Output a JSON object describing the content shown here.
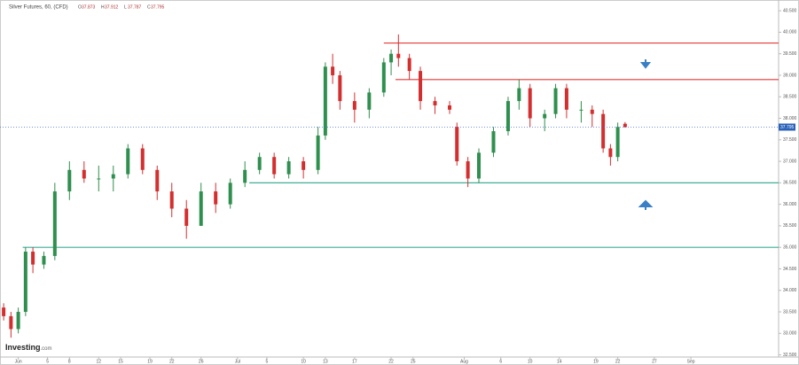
{
  "chart_data": {
    "type": "candlestick",
    "title": "Silver Futures, 60, (CFD)",
    "ohlc_legend": [
      {
        "label": "O",
        "value": "37.873"
      },
      {
        "label": "H",
        "value": "37.912"
      },
      {
        "label": "L",
        "value": "37.787"
      },
      {
        "label": "C",
        "value": "37.795"
      }
    ],
    "brand": "Investing",
    "brand_suffix": ".com",
    "last_price": 37.795,
    "up_color": "#2f8f4e",
    "down_color": "#d32f2f",
    "x": [
      -2,
      -1,
      0,
      1,
      2,
      3.5,
      5,
      7,
      9,
      11,
      13,
      15,
      17,
      19,
      21,
      23,
      25,
      27,
      29,
      31,
      33,
      35,
      37,
      39,
      41,
      42,
      43,
      44,
      46,
      48,
      50,
      51,
      52,
      53.5,
      55,
      57,
      59,
      60,
      61.5,
      63,
      65,
      67,
      68.5,
      70,
      72,
      73.5,
      75,
      77,
      78.5,
      80,
      81,
      82,
      83
    ],
    "open": [
      33.6,
      33.4,
      33.1,
      33.5,
      34.9,
      34.6,
      34.8,
      36.3,
      36.8,
      36.6,
      36.6,
      36.7,
      37.3,
      36.8,
      36.3,
      35.9,
      35.5,
      36.3,
      36.0,
      36.5,
      36.8,
      37.1,
      36.7,
      37.0,
      36.8,
      37.6,
      39.2,
      39.0,
      38.4,
      38.2,
      38.6,
      39.3,
      39.5,
      39.4,
      39.1,
      38.4,
      38.3,
      37.8,
      37.0,
      36.6,
      37.2,
      37.7,
      38.4,
      38.7,
      38.0,
      38.1,
      38.7,
      38.2,
      38.2,
      38.1,
      37.3,
      37.1,
      37.873
    ],
    "high": [
      33.7,
      33.5,
      33.6,
      35.0,
      35.0,
      34.9,
      36.5,
      37.0,
      37.0,
      36.9,
      36.9,
      37.4,
      37.4,
      36.9,
      36.5,
      36.1,
      36.5,
      36.5,
      36.6,
      37.0,
      37.2,
      37.2,
      37.1,
      37.1,
      37.8,
      39.3,
      39.5,
      39.1,
      38.6,
      38.7,
      39.4,
      39.6,
      39.95,
      39.5,
      39.2,
      38.5,
      38.4,
      37.9,
      37.1,
      37.3,
      37.8,
      38.5,
      38.9,
      38.8,
      38.2,
      38.8,
      38.8,
      38.4,
      38.3,
      38.2,
      37.4,
      37.9,
      37.912
    ],
    "low": [
      33.3,
      32.9,
      33.0,
      33.4,
      34.4,
      34.5,
      34.7,
      36.1,
      36.5,
      36.3,
      36.3,
      36.6,
      36.7,
      36.1,
      35.7,
      35.2,
      35.5,
      35.8,
      35.9,
      36.4,
      36.7,
      36.6,
      36.6,
      36.6,
      36.7,
      37.5,
      38.8,
      38.2,
      37.9,
      38.0,
      38.5,
      39.0,
      39.2,
      38.9,
      38.2,
      38.1,
      38.1,
      36.9,
      36.4,
      36.5,
      37.1,
      37.6,
      38.2,
      37.8,
      37.7,
      38.0,
      38.0,
      37.9,
      37.8,
      37.2,
      36.9,
      37.0,
      37.787
    ],
    "close": [
      33.4,
      33.1,
      33.5,
      34.9,
      34.6,
      34.8,
      36.3,
      36.8,
      36.6,
      36.6,
      36.7,
      37.3,
      36.8,
      36.3,
      35.9,
      35.5,
      36.3,
      36.0,
      36.5,
      36.8,
      37.1,
      36.7,
      37.0,
      36.8,
      37.6,
      39.2,
      39.0,
      38.4,
      38.2,
      38.6,
      39.3,
      39.5,
      39.4,
      39.1,
      38.4,
      38.3,
      38.2,
      37.0,
      36.6,
      37.2,
      37.7,
      38.4,
      38.7,
      38.0,
      38.1,
      38.7,
      38.2,
      38.2,
      38.1,
      37.3,
      37.1,
      37.8,
      37.795
    ],
    "levels": [
      {
        "value": 39.75,
        "start": 50,
        "color": "#e53935"
      },
      {
        "value": 38.9,
        "start": 51.6,
        "color": "#e53935"
      },
      {
        "value": 36.5,
        "start": 31.6,
        "color": "#3fae96"
      },
      {
        "value": 35.0,
        "start": 0.6,
        "color": "#3fae96"
      }
    ],
    "xlim": [
      -2.5,
      104
    ],
    "ylim": [
      32.45,
      40.75
    ],
    "xticks": [
      {
        "value": 0,
        "label": "Jun"
      },
      {
        "value": 4,
        "label": "5"
      },
      {
        "value": 7,
        "label": "8"
      },
      {
        "value": 11,
        "label": "12"
      },
      {
        "value": 14,
        "label": "15"
      },
      {
        "value": 18,
        "label": "19"
      },
      {
        "value": 21,
        "label": "22"
      },
      {
        "value": 25,
        "label": "26"
      },
      {
        "value": 30,
        "label": "Jul"
      },
      {
        "value": 34,
        "label": "5"
      },
      {
        "value": 39,
        "label": "10"
      },
      {
        "value": 42,
        "label": "13"
      },
      {
        "value": 46,
        "label": "17"
      },
      {
        "value": 51,
        "label": "22"
      },
      {
        "value": 54,
        "label": "25"
      },
      {
        "value": 61,
        "label": "Aug"
      },
      {
        "value": 66,
        "label": "6"
      },
      {
        "value": 70,
        "label": "10"
      },
      {
        "value": 74,
        "label": "14"
      },
      {
        "value": 79,
        "label": "19"
      },
      {
        "value": 82,
        "label": "22"
      },
      {
        "value": 87,
        "label": "27"
      },
      {
        "value": 92,
        "label": "Sep"
      }
    ],
    "yticks": [
      {
        "value": 40.5,
        "label": "40.500"
      },
      {
        "value": 40,
        "label": "40.000"
      },
      {
        "value": 39.5,
        "label": "39.500"
      },
      {
        "value": 39,
        "label": "39.000"
      },
      {
        "value": 38.5,
        "label": "38.500"
      },
      {
        "value": 38,
        "label": "38.000"
      },
      {
        "value": 37.5,
        "label": "37.500"
      },
      {
        "value": 37,
        "label": "37.000"
      },
      {
        "value": 36.5,
        "label": "36.500"
      },
      {
        "value": 36,
        "label": "36.000"
      },
      {
        "value": 35.5,
        "label": "35.500"
      },
      {
        "value": 35,
        "label": "35.000"
      },
      {
        "value": 34.5,
        "label": "34.500"
      },
      {
        "value": 34,
        "label": "34.000"
      },
      {
        "value": 33.5,
        "label": "33.500"
      },
      {
        "value": 33,
        "label": "33.000"
      },
      {
        "value": 32.5,
        "label": "32.500"
      }
    ]
  }
}
